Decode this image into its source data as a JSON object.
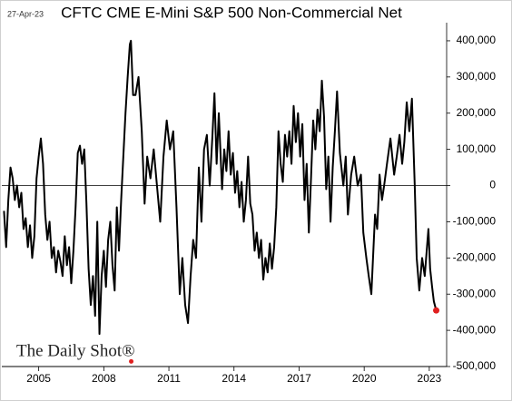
{
  "chart_data": {
    "type": "line",
    "title": "CFTC CME E-Mini S&P 500 Non-Commercial Net",
    "date_label": "27-Apr-23",
    "source": "The Daily Shot®",
    "color": "#000000",
    "last_point_color": "#e02020",
    "zero_line": true,
    "x": [
      2003.4,
      2003.5,
      2003.6,
      2003.7,
      2003.8,
      2003.9,
      2004.0,
      2004.1,
      2004.2,
      2004.3,
      2004.4,
      2004.5,
      2004.6,
      2004.7,
      2004.8,
      2004.9,
      2005.0,
      2005.1,
      2005.2,
      2005.3,
      2005.4,
      2005.5,
      2005.6,
      2005.7,
      2005.8,
      2005.9,
      2006.0,
      2006.1,
      2006.2,
      2006.3,
      2006.4,
      2006.5,
      2006.6,
      2006.7,
      2006.8,
      2006.9,
      2007.0,
      2007.1,
      2007.2,
      2007.3,
      2007.4,
      2007.5,
      2007.6,
      2007.7,
      2007.8,
      2007.9,
      2008.0,
      2008.1,
      2008.2,
      2008.3,
      2008.4,
      2008.5,
      2008.6,
      2008.7,
      2008.8,
      2008.9,
      2009.0,
      2009.1,
      2009.2,
      2009.25,
      2009.35,
      2009.46,
      2009.6,
      2009.75,
      2009.88,
      2010.0,
      2010.15,
      2010.3,
      2010.45,
      2010.6,
      2010.75,
      2010.9,
      2011.05,
      2011.2,
      2011.35,
      2011.5,
      2011.62,
      2011.75,
      2011.88,
      2012.0,
      2012.12,
      2012.25,
      2012.38,
      2012.5,
      2012.62,
      2012.75,
      2012.88,
      2013.0,
      2013.1,
      2013.2,
      2013.3,
      2013.45,
      2013.55,
      2013.65,
      2013.75,
      2013.85,
      2013.95,
      2014.05,
      2014.15,
      2014.25,
      2014.35,
      2014.45,
      2014.55,
      2014.65,
      2014.75,
      2014.85,
      2014.95,
      2015.05,
      2015.15,
      2015.25,
      2015.35,
      2015.45,
      2015.55,
      2015.65,
      2015.75,
      2015.85,
      2015.95,
      2016.05,
      2016.15,
      2016.25,
      2016.35,
      2016.45,
      2016.55,
      2016.65,
      2016.75,
      2016.85,
      2016.95,
      2017.05,
      2017.15,
      2017.25,
      2017.35,
      2017.45,
      2017.55,
      2017.65,
      2017.75,
      2017.85,
      2017.95,
      2018.05,
      2018.15,
      2018.25,
      2018.35,
      2018.45,
      2018.55,
      2018.65,
      2018.75,
      2018.88,
      2019.04,
      2019.15,
      2019.25,
      2019.4,
      2019.54,
      2019.7,
      2019.85,
      2019.96,
      2020.1,
      2020.21,
      2020.33,
      2020.5,
      2020.6,
      2020.71,
      2020.82,
      2020.92,
      2021.05,
      2021.21,
      2021.38,
      2021.5,
      2021.63,
      2021.75,
      2021.85,
      2021.96,
      2022.08,
      2022.2,
      2022.33,
      2022.42,
      2022.54,
      2022.67,
      2022.79,
      2022.96,
      2023.04,
      2023.13,
      2023.21,
      2023.32
    ],
    "values": [
      -70000,
      -170000,
      -40000,
      50000,
      20000,
      -40000,
      0,
      -60000,
      -20000,
      -120000,
      -90000,
      -170000,
      -110000,
      -200000,
      -140000,
      20000,
      80000,
      130000,
      60000,
      -80000,
      -150000,
      -100000,
      -200000,
      -170000,
      -240000,
      -180000,
      -210000,
      -250000,
      -140000,
      -220000,
      -170000,
      -270000,
      -180000,
      -60000,
      90000,
      110000,
      60000,
      100000,
      -50000,
      -230000,
      -330000,
      -250000,
      -360000,
      -100000,
      -410000,
      -250000,
      -180000,
      -280000,
      -150000,
      -100000,
      -220000,
      -290000,
      -60000,
      -180000,
      -40000,
      80000,
      200000,
      300000,
      390000,
      400000,
      250000,
      250000,
      300000,
      150000,
      -50000,
      80000,
      20000,
      100000,
      0,
      -100000,
      80000,
      180000,
      100000,
      150000,
      -60000,
      -300000,
      -200000,
      -330000,
      -380000,
      -250000,
      -150000,
      -200000,
      50000,
      -100000,
      100000,
      140000,
      0,
      130000,
      255000,
      60000,
      200000,
      -10000,
      100000,
      40000,
      150000,
      30000,
      90000,
      -20000,
      40000,
      -60000,
      10000,
      -100000,
      -40000,
      80000,
      -50000,
      -80000,
      -180000,
      -130000,
      -200000,
      -150000,
      -260000,
      -200000,
      -240000,
      -160000,
      -230000,
      -170000,
      -60000,
      150000,
      60000,
      10000,
      140000,
      80000,
      150000,
      60000,
      220000,
      120000,
      200000,
      80000,
      170000,
      -40000,
      60000,
      -130000,
      20000,
      180000,
      100000,
      210000,
      150000,
      290000,
      190000,
      -10000,
      80000,
      -100000,
      50000,
      150000,
      260000,
      90000,
      0,
      80000,
      -80000,
      30000,
      80000,
      0,
      30000,
      -130000,
      -200000,
      -250000,
      -300000,
      -80000,
      -120000,
      30000,
      -40000,
      0,
      60000,
      130000,
      30000,
      80000,
      140000,
      60000,
      120000,
      230000,
      150000,
      240000,
      0,
      -200000,
      -290000,
      -200000,
      -250000,
      -120000,
      -230000,
      -280000,
      -320000,
      -345000
    ],
    "xlim": [
      2003.3,
      2023.8
    ],
    "xticks": [
      2005,
      2008,
      2011,
      2014,
      2017,
      2020,
      2023
    ],
    "ylim": [
      -500000,
      450000
    ],
    "yticks": [
      {
        "value": -500000,
        "label": "-500,000"
      },
      {
        "value": -400000,
        "label": "-400,000"
      },
      {
        "value": -300000,
        "label": "-300,000"
      },
      {
        "value": -200000,
        "label": "-200,000"
      },
      {
        "value": -100000,
        "label": "-100,000"
      },
      0,
      {
        "value": 100000,
        "label": "100,000"
      },
      {
        "value": 200000,
        "label": "200,000"
      },
      {
        "value": 300000,
        "label": "300,000"
      },
      {
        "value": 400000,
        "label": "400,000"
      }
    ]
  }
}
